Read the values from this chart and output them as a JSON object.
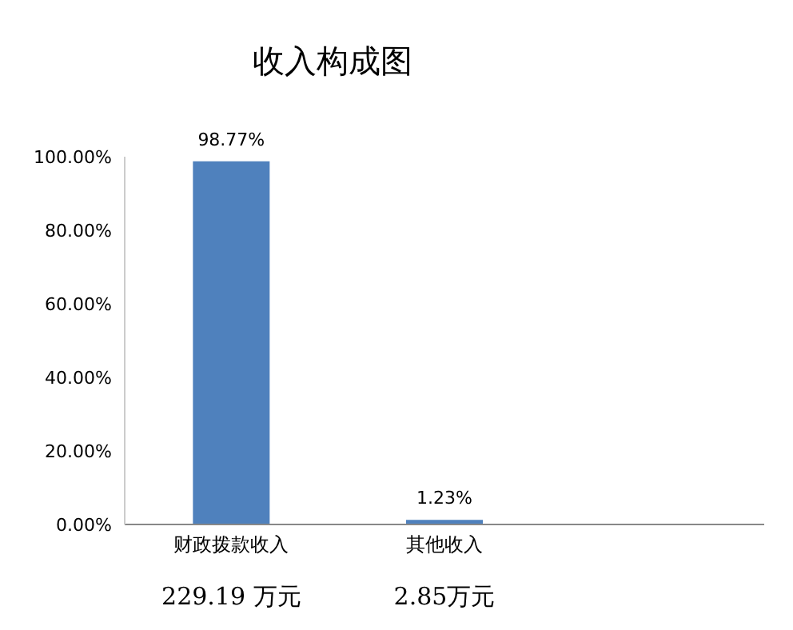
{
  "chart_data": {
    "type": "bar",
    "title": "收入构成图",
    "categories": [
      "财政拨款收入",
      "其他收入",
      null
    ],
    "values": [
      98.77,
      1.23,
      null
    ],
    "value_labels": [
      "98.77%",
      "1.23%",
      null
    ],
    "color": "#4f81bd",
    "ylim": [
      0,
      100
    ],
    "yticks": [
      {
        "value": 0,
        "label": "0.00%"
      },
      {
        "value": 20,
        "label": "20.00%"
      },
      {
        "value": 40,
        "label": "40.00%"
      },
      {
        "value": 60,
        "label": "60.00%"
      },
      {
        "value": 80,
        "label": "80.00%"
      },
      {
        "value": 100,
        "label": "100.00%"
      }
    ],
    "annotations": [
      "229.19 万元",
      "2.85万元"
    ],
    "grid": false,
    "legend": false
  }
}
